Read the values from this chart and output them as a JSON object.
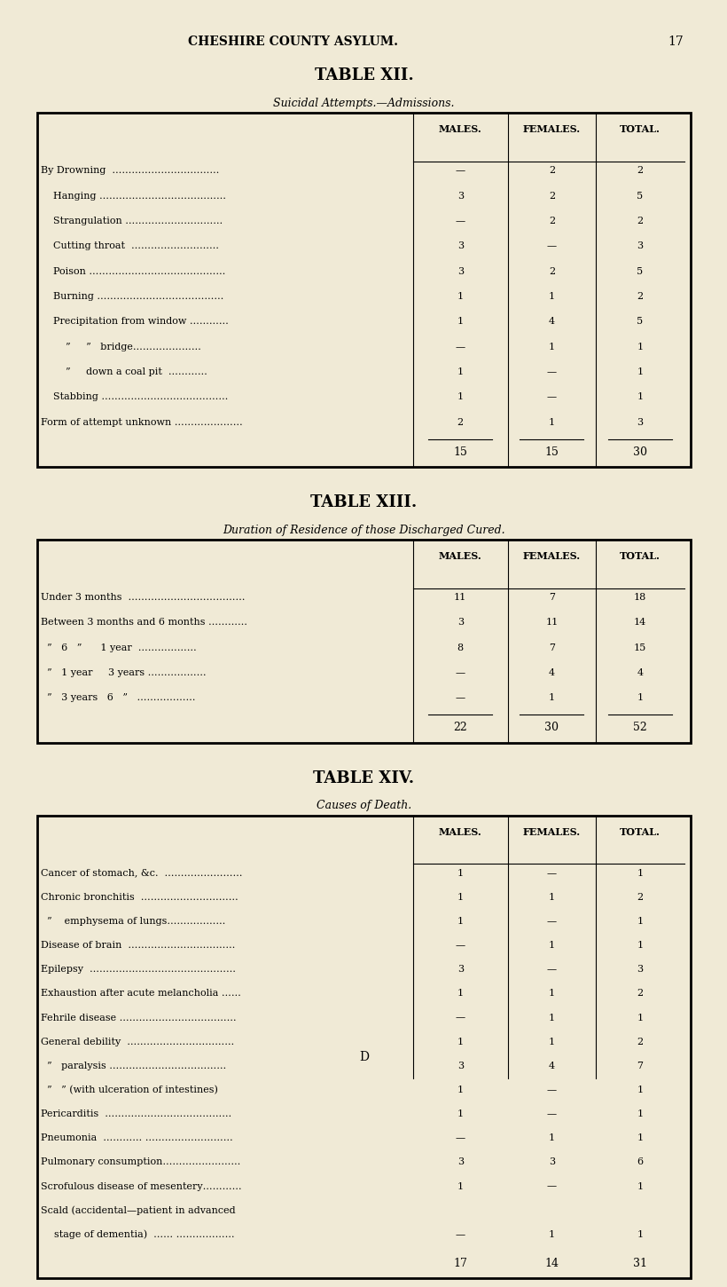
{
  "bg_color": "#f0ead6",
  "page_header": "CHESHIRE COUNTY ASYLUM.",
  "page_number": "17",
  "table12_title": "TABLE XII.",
  "table12_subtitle": "Suicidal Attempts.—Admissions.",
  "table12_col_headers": [
    "MALES.",
    "FEMALES.",
    "TOTAL."
  ],
  "table12_rows": [
    [
      "By Drowning  ……………………………",
      "—",
      "2",
      "2"
    ],
    [
      "    Hanging …………………………………",
      "3",
      "2",
      "5"
    ],
    [
      "    Strangulation …………………………",
      "—",
      "2",
      "2"
    ],
    [
      "    Cutting throat  ………………………",
      "3",
      "—",
      "3"
    ],
    [
      "    Poison ……………………………………",
      "3",
      "2",
      "5"
    ],
    [
      "    Burning …………………………………",
      "1",
      "1",
      "2"
    ],
    [
      "    Precipitation from window …………",
      "1",
      "4",
      "5"
    ],
    [
      "        ”     ”   bridge…………………",
      "—",
      "1",
      "1"
    ],
    [
      "        ”     down a coal pit  …………",
      "1",
      "—",
      "1"
    ],
    [
      "    Stabbing …………………………………",
      "1",
      "—",
      "1"
    ],
    [
      "Form of attempt unknown …………………",
      "2",
      "1",
      "3"
    ]
  ],
  "table12_totals": [
    "15",
    "15",
    "30"
  ],
  "table13_title": "TABLE XIII.",
  "table13_subtitle": "Duration of Residence of those Discharged Cured.",
  "table13_col_headers": [
    "MALES.",
    "FEMALES.",
    "TOTAL."
  ],
  "table13_rows": [
    [
      "Under 3 months  ………………………………",
      "11",
      "7",
      "18"
    ],
    [
      "Between 3 months and 6 months …………",
      "3",
      "11",
      "14"
    ],
    [
      "  ”   6   ”      1 year  ………………",
      "8",
      "7",
      "15"
    ],
    [
      "  ”   1 year     3 years ………………",
      "—",
      "4",
      "4"
    ],
    [
      "  ”   3 years   6   ”   ………………",
      "—",
      "1",
      "1"
    ]
  ],
  "table13_totals": [
    "22",
    "30",
    "52"
  ],
  "table14_title": "TABLE XIV.",
  "table14_subtitle": "Causes of Death.",
  "table14_col_headers": [
    "MALES.",
    "FEMALES.",
    "TOTAL."
  ],
  "table14_rows": [
    [
      "Cancer of stomach, &c.  ……………………",
      "1",
      "—",
      "1"
    ],
    [
      "Chronic bronchitis  …………………………",
      "1",
      "1",
      "2"
    ],
    [
      "  ”    emphysema of lungs………………",
      "1",
      "—",
      "1"
    ],
    [
      "Disease of brain  ……………………………",
      "—",
      "1",
      "1"
    ],
    [
      "Epilepsy  ………………………………………",
      "3",
      "—",
      "3"
    ],
    [
      "Exhaustion after acute melancholia ……",
      "1",
      "1",
      "2"
    ],
    [
      "Fehrile disease ………………………………",
      "—",
      "1",
      "1"
    ],
    [
      "General debility  ……………………………",
      "1",
      "1",
      "2"
    ],
    [
      "  ”   paralysis ………………………………",
      "3",
      "4",
      "7"
    ],
    [
      "  ”   ” (with ulceration of intestines)",
      "1",
      "—",
      "1"
    ],
    [
      "Pericarditis  …………………………………",
      "1",
      "—",
      "1"
    ],
    [
      "Pneumonia  ………… ………………………",
      "—",
      "1",
      "1"
    ],
    [
      "Pulmonary consumption……………………",
      "3",
      "3",
      "6"
    ],
    [
      "Scrofulous disease of mesentery…………",
      "1",
      "—",
      "1"
    ],
    [
      "Scald (accidental—patient in advanced\n  stage of dementia)  …… ………………",
      "—",
      "1",
      "1"
    ]
  ],
  "table14_totals": [
    "17",
    "14",
    "31"
  ],
  "footer": "D"
}
